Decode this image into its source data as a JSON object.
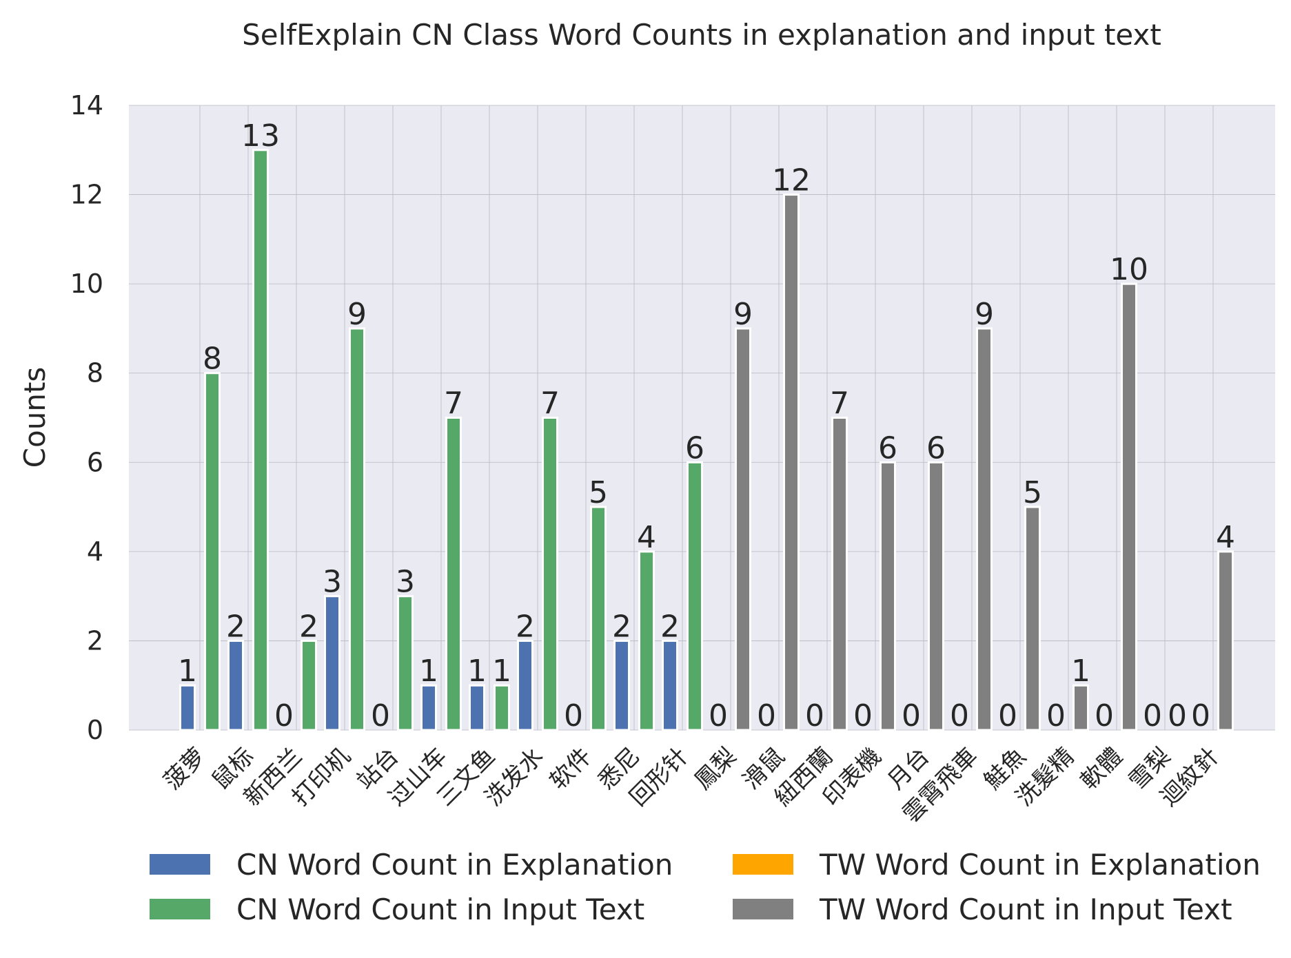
{
  "chart_data": {
    "type": "bar",
    "title": "SelfExplain CN Class Word Counts in explanation and input text",
    "xlabel": "",
    "ylabel": "Counts",
    "ylim": [
      0,
      14
    ],
    "yticks": [
      0,
      2,
      4,
      6,
      8,
      10,
      12,
      14
    ],
    "grid": true,
    "legend_position": "bottom",
    "categories": [
      "菠萝",
      "鼠标",
      "新西兰",
      "打印机",
      "站台",
      "过山车",
      "三文鱼",
      "洗发水",
      "软件",
      "悉尼",
      "回形针",
      "鳳梨",
      "滑鼠",
      "紐西蘭",
      "印表機",
      "月台",
      "雲霄飛車",
      "鮭魚",
      "洗髮精",
      "軟體",
      "雪梨",
      "迴紋針"
    ],
    "series": [
      {
        "name": "CN Word Count in Explanation",
        "color": "#4c72b0",
        "values": [
          1,
          2,
          0,
          3,
          0,
          1,
          1,
          2,
          0,
          2,
          2,
          null,
          null,
          null,
          null,
          null,
          null,
          null,
          null,
          null,
          null,
          null
        ]
      },
      {
        "name": "CN Word Count in Input Text",
        "color": "#55a868",
        "values": [
          8,
          13,
          2,
          9,
          3,
          7,
          1,
          7,
          5,
          4,
          6,
          null,
          null,
          null,
          null,
          null,
          null,
          null,
          null,
          null,
          null,
          null
        ]
      },
      {
        "name": "TW Word Count in Explanation",
        "color": "#ffa500",
        "values": [
          null,
          null,
          null,
          null,
          null,
          null,
          null,
          null,
          null,
          null,
          null,
          0,
          0,
          0,
          0,
          0,
          0,
          0,
          0,
          0,
          0,
          0
        ]
      },
      {
        "name": "TW Word Count in Input Text",
        "color": "#808080",
        "values": [
          null,
          null,
          null,
          null,
          null,
          null,
          null,
          null,
          null,
          null,
          null,
          9,
          12,
          7,
          6,
          6,
          9,
          5,
          1,
          10,
          0,
          4
        ]
      }
    ]
  }
}
